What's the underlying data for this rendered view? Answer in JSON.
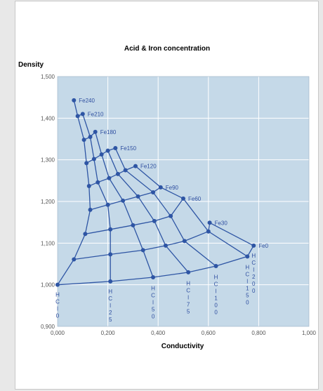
{
  "colors": {
    "plot_bg": "#c5d9e8",
    "grid": "#ffffff",
    "line": "#2e55a4",
    "marker": "#2e55a4",
    "label": "#2f4fa0"
  },
  "chart_data": {
    "type": "scatter",
    "title": "Acid & Iron concentration",
    "xlabel": "Conductivity",
    "ylabel": "Density",
    "xlim": [
      0,
      1
    ],
    "ylim": [
      0.9,
      1.5
    ],
    "x_ticks": [
      "0,000",
      "0,200",
      "0,400",
      "0,600",
      "0,800",
      "1,000"
    ],
    "y_ticks": [
      "0,900",
      "1,000",
      "1,100",
      "1,200",
      "1,300",
      "1,400",
      "1,500"
    ],
    "grid": true,
    "series_points": [
      {
        "name": "Fe240",
        "x": [
          0.065
        ],
        "y": [
          1.443
        ]
      },
      {
        "name": "Fe210",
        "x": [
          0.08,
          0.1
        ],
        "y": [
          1.405,
          1.41
        ]
      },
      {
        "name": "Fe180",
        "x": [
          0.105,
          0.13,
          0.15
        ],
        "y": [
          1.348,
          1.355,
          1.367
        ]
      },
      {
        "name": "Fe150",
        "x": [
          0.115,
          0.145,
          0.175,
          0.2,
          0.23
        ],
        "y": [
          1.292,
          1.302,
          1.313,
          1.322,
          1.328
        ]
      },
      {
        "name": "Fe120",
        "x": [
          0.125,
          0.16,
          0.205,
          0.24,
          0.27,
          0.31
        ],
        "y": [
          1.237,
          1.246,
          1.256,
          1.266,
          1.275,
          1.285
        ]
      },
      {
        "name": "Fe90",
        "x": [
          0.13,
          0.175,
          0.22,
          0.265,
          0.31,
          0.35,
          0.405
        ],
        "y": [
          1.18,
          1.188,
          1.2,
          1.212,
          1.223,
          1.235,
          1.235
        ]
      },
      {
        "name": "Fe60",
        "x": [
          0.2,
          0.26,
          0.32,
          0.38,
          0.45,
          0.5
        ],
        "y": [
          1.192,
          1.168,
          1.15,
          1.14,
          1.16,
          1.207
        ]
      },
      {
        "name": "Fe30",
        "x": [
          0.11,
          0.21,
          0.3,
          0.385,
          0.465,
          0.55,
          0.6
        ],
        "y": [
          1.122,
          1.133,
          1.143,
          1.153,
          1.138,
          1.128,
          1.149
        ]
      },
      {
        "name": "Fe0",
        "x": [
          0.78
        ],
        "y": [
          1.094
        ]
      }
    ],
    "grid_rows": [
      [
        [
          0.065,
          1.443
        ]
      ],
      [
        [
          0.08,
          1.405
        ],
        [
          0.1,
          1.41
        ]
      ],
      [
        [
          0.105,
          1.348
        ],
        [
          0.13,
          1.355
        ],
        [
          0.15,
          1.367
        ]
      ],
      [
        [
          0.115,
          1.292
        ],
        [
          0.145,
          1.302
        ],
        [
          0.175,
          1.313
        ],
        [
          0.2,
          1.322
        ],
        [
          0.23,
          1.328
        ]
      ],
      [
        [
          0.125,
          1.237
        ],
        [
          0.16,
          1.246
        ],
        [
          0.205,
          1.256
        ],
        [
          0.24,
          1.266
        ],
        [
          0.27,
          1.275
        ],
        [
          0.31,
          1.285
        ]
      ],
      [
        [
          0.13,
          1.18
        ],
        [
          0.2,
          1.192
        ],
        [
          0.26,
          1.202
        ],
        [
          0.32,
          1.212
        ],
        [
          0.38,
          1.222
        ],
        [
          0.41,
          1.234
        ]
      ],
      [
        [
          0.11,
          1.122
        ],
        [
          0.21,
          1.133
        ],
        [
          0.3,
          1.143
        ],
        [
          0.385,
          1.153
        ],
        [
          0.45,
          1.165
        ],
        [
          0.5,
          1.207
        ]
      ],
      [
        [
          0.065,
          1.061
        ],
        [
          0.21,
          1.073
        ],
        [
          0.34,
          1.083
        ],
        [
          0.43,
          1.094
        ],
        [
          0.505,
          1.105
        ],
        [
          0.6,
          1.128
        ],
        [
          0.605,
          1.149
        ]
      ],
      [
        [
          0.0,
          1.0
        ],
        [
          0.21,
          1.008
        ],
        [
          0.38,
          1.018
        ],
        [
          0.52,
          1.03
        ],
        [
          0.63,
          1.045
        ],
        [
          0.755,
          1.068
        ],
        [
          0.78,
          1.094
        ]
      ]
    ],
    "grid_cols": [
      [
        [
          0.0,
          1.0
        ],
        [
          0.065,
          1.061
        ],
        [
          0.11,
          1.122
        ],
        [
          0.13,
          1.18
        ],
        [
          0.125,
          1.237
        ],
        [
          0.115,
          1.292
        ],
        [
          0.105,
          1.348
        ],
        [
          0.08,
          1.405
        ],
        [
          0.065,
          1.443
        ]
      ],
      [
        [
          0.21,
          1.008
        ],
        [
          0.21,
          1.073
        ],
        [
          0.21,
          1.133
        ],
        [
          0.2,
          1.192
        ],
        [
          0.16,
          1.246
        ],
        [
          0.145,
          1.302
        ],
        [
          0.13,
          1.355
        ],
        [
          0.1,
          1.41
        ]
      ],
      [
        [
          0.38,
          1.018
        ],
        [
          0.34,
          1.083
        ],
        [
          0.3,
          1.143
        ],
        [
          0.26,
          1.202
        ],
        [
          0.205,
          1.256
        ],
        [
          0.175,
          1.313
        ],
        [
          0.15,
          1.367
        ]
      ],
      [
        [
          0.52,
          1.03
        ],
        [
          0.43,
          1.094
        ],
        [
          0.385,
          1.153
        ],
        [
          0.32,
          1.212
        ],
        [
          0.24,
          1.266
        ],
        [
          0.2,
          1.322
        ]
      ],
      [
        [
          0.63,
          1.045
        ],
        [
          0.505,
          1.105
        ],
        [
          0.45,
          1.165
        ],
        [
          0.38,
          1.222
        ],
        [
          0.27,
          1.275
        ],
        [
          0.23,
          1.328
        ]
      ],
      [
        [
          0.755,
          1.068
        ],
        [
          0.6,
          1.128
        ],
        [
          0.5,
          1.207
        ],
        [
          0.41,
          1.234
        ],
        [
          0.31,
          1.285
        ]
      ],
      [
        [
          0.78,
          1.094
        ],
        [
          0.605,
          1.149
        ]
      ]
    ],
    "fe_labels": [
      {
        "text": "Fe240",
        "x": 0.065,
        "y": 1.443
      },
      {
        "text": "Fe210",
        "x": 0.1,
        "y": 1.41
      },
      {
        "text": "Fe180",
        "x": 0.15,
        "y": 1.367
      },
      {
        "text": "Fe150",
        "x": 0.23,
        "y": 1.328
      },
      {
        "text": "Fe120",
        "x": 0.31,
        "y": 1.285
      },
      {
        "text": "Fe90",
        "x": 0.41,
        "y": 1.234
      },
      {
        "text": "Fe60",
        "x": 0.5,
        "y": 1.207
      },
      {
        "text": "Fe30",
        "x": 0.605,
        "y": 1.149
      },
      {
        "text": "Fe0",
        "x": 0.78,
        "y": 1.094
      }
    ],
    "hcl_labels": [
      {
        "text": "HCl0",
        "x": 0.0,
        "y": 0.985
      },
      {
        "text": "HCl25",
        "x": 0.21,
        "y": 0.993
      },
      {
        "text": "HCl50",
        "x": 0.38,
        "y": 1.0
      },
      {
        "text": "HCl75",
        "x": 0.52,
        "y": 1.012
      },
      {
        "text": "HCl100",
        "x": 0.63,
        "y": 1.027
      },
      {
        "text": "HCl150",
        "x": 0.755,
        "y": 1.051
      },
      {
        "text": "HCl200",
        "x": 0.78,
        "y": 1.079
      }
    ]
  }
}
